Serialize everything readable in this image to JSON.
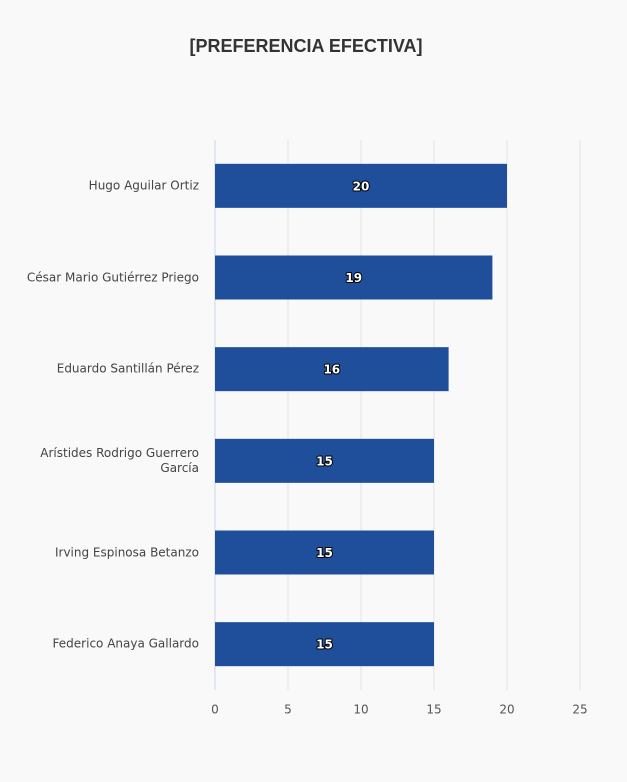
{
  "chart_data": {
    "type": "barh",
    "title": "[PREFERENCIA EFECTIVA]",
    "categories": [
      "Hugo Aguilar Ortiz",
      "César Mario Gutiérrez Priego",
      "Eduardo Santillán Pérez",
      "Arístides Rodrigo Guerrero García",
      "Irving Espinosa Betanzo",
      "Federico Anaya Gallardo"
    ],
    "values": [
      20,
      19,
      16,
      15,
      15,
      15
    ],
    "color": "#1f4e9b",
    "xlim": [
      0,
      25
    ],
    "xticks": [
      0,
      5,
      10,
      15,
      20,
      25
    ],
    "grid": true
  }
}
